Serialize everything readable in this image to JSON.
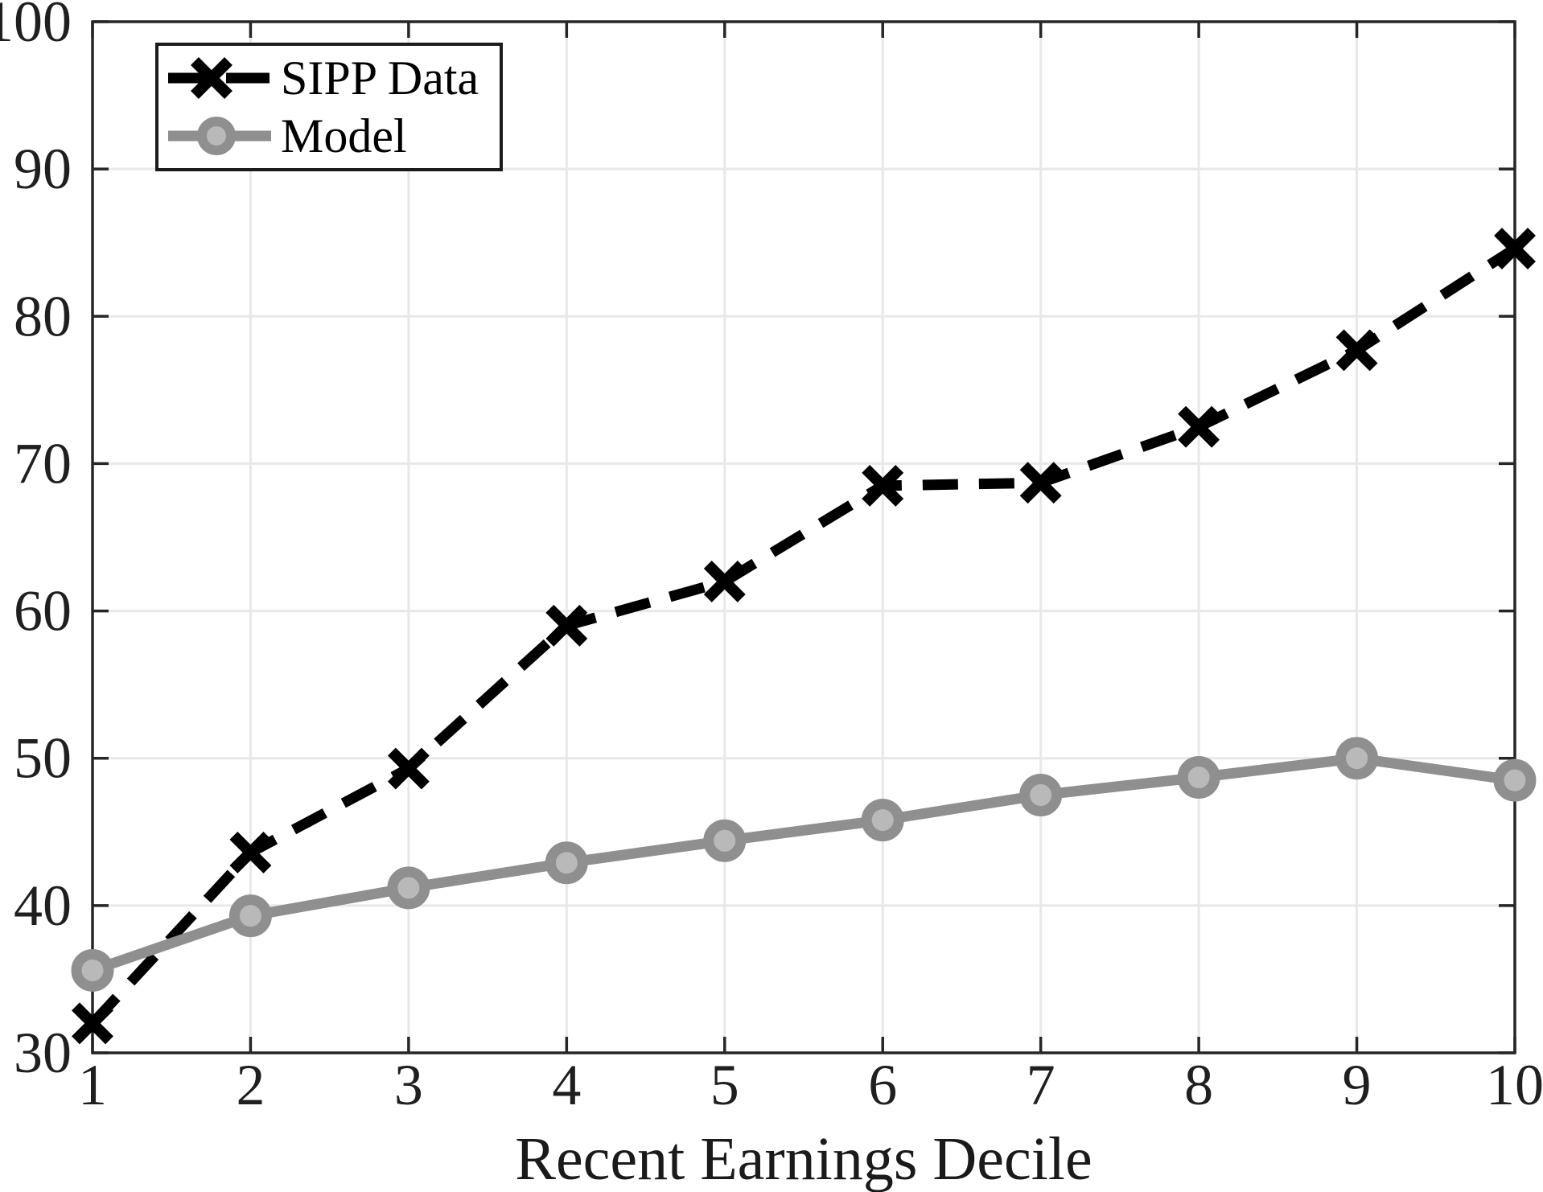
{
  "figure": {
    "background": "#ffffff",
    "axis_color": "#262626",
    "grid_color": "#e8e8e8",
    "tick_label_color": "#1f1f1f",
    "x_tick_labels": [
      "1",
      "2",
      "3",
      "4",
      "5",
      "6",
      "7",
      "8",
      "9",
      "10"
    ],
    "y_tick_labels": [
      "30",
      "40",
      "50",
      "60",
      "70",
      "80",
      "90",
      "100"
    ]
  },
  "chart_data": {
    "type": "line",
    "title": "",
    "xlabel": "Recent Earnings Decile",
    "ylabel": "",
    "x": [
      1,
      2,
      3,
      4,
      5,
      6,
      7,
      8,
      9,
      10
    ],
    "xlim": [
      1,
      10
    ],
    "ylim": [
      30,
      100
    ],
    "xticks": [
      1,
      2,
      3,
      4,
      5,
      6,
      7,
      8,
      9,
      10
    ],
    "yticks": [
      30,
      40,
      50,
      60,
      70,
      80,
      90,
      100
    ],
    "grid": true,
    "legend_position": "top-left",
    "series": [
      {
        "name": "SIPP Data",
        "marker": "x",
        "line_style": "dashed",
        "color": "#000000",
        "values": [
          32.0,
          43.6,
          49.3,
          59.0,
          62.0,
          68.5,
          68.7,
          72.5,
          77.7,
          84.6
        ]
      },
      {
        "name": "Model",
        "marker": "circle",
        "line_style": "solid",
        "color": "#8f8f8f",
        "marker_face_color": "#b9b9b9",
        "values": [
          35.6,
          39.3,
          41.2,
          42.9,
          44.4,
          45.8,
          47.5,
          48.7,
          50.0,
          48.5
        ]
      }
    ]
  }
}
